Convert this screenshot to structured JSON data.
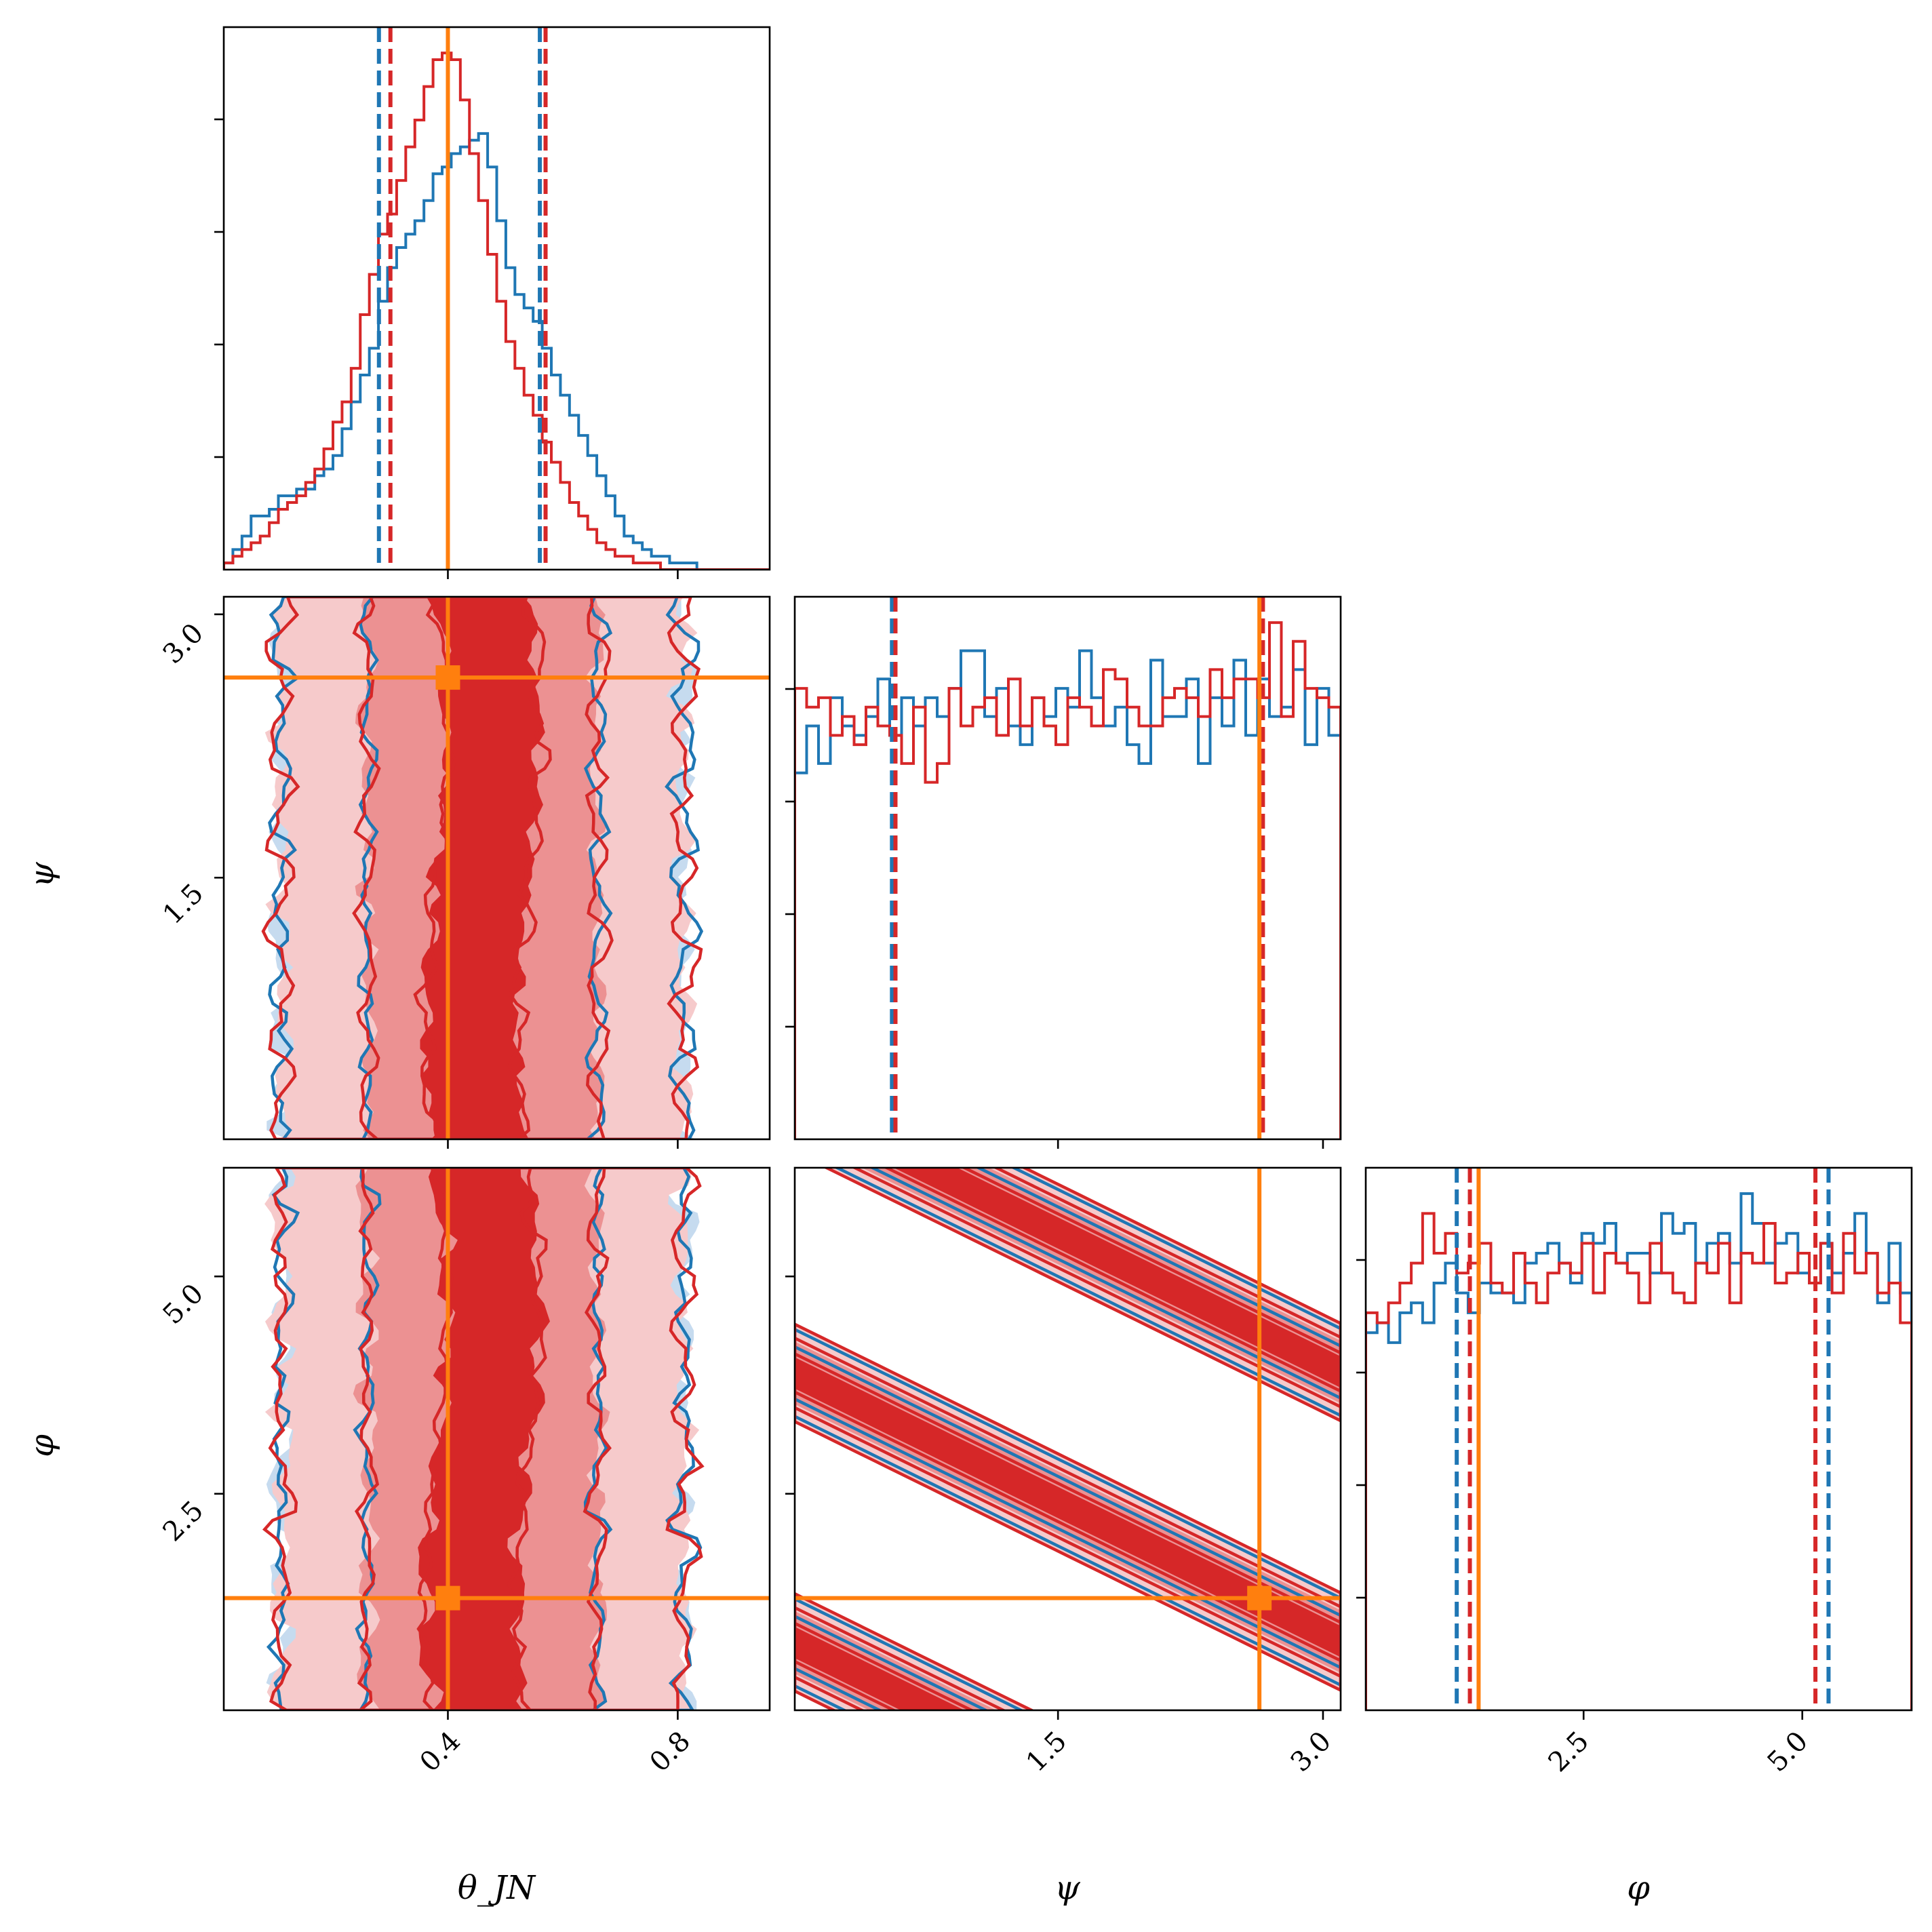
{
  "chart_data": {
    "type": "corner",
    "parameters": [
      {
        "key": "theta_jn",
        "label": "θ_JN",
        "range": [
          0.01,
          0.96
        ],
        "ticks": [
          0.4,
          0.8
        ],
        "tick_labels": [
          "0.4",
          "0.8"
        ],
        "truth": 0.4
      },
      {
        "key": "psi",
        "label": "ψ",
        "range": [
          0.01,
          3.1
        ],
        "ticks": [
          1.5,
          3.0
        ],
        "tick_labels": [
          "1.5",
          "3.0"
        ],
        "truth": 2.64
      },
      {
        "key": "phi",
        "label": "φ",
        "range": [
          0.01,
          6.25
        ],
        "ticks": [
          2.5,
          5.0
        ],
        "tick_labels": [
          "2.5",
          "5.0"
        ],
        "truth": 1.3
      }
    ],
    "series": [
      {
        "color": "#1f77b4"
      },
      {
        "color": "#d62728"
      }
    ],
    "truth_color": "#ff7f0e",
    "quantiles": {
      "theta_jn": {
        "series_1": [
          0.28,
          0.56
        ],
        "series_2": [
          0.3,
          0.57
        ]
      },
      "psi": {
        "series_1": [
          0.56,
          2.65
        ],
        "series_2": [
          0.58,
          2.66
        ]
      },
      "phi": {
        "series_1": [
          1.05,
          5.3
        ],
        "series_2": [
          1.2,
          5.15
        ]
      }
    },
    "histograms": {
      "theta_jn": {
        "bin_range": [
          0.01,
          0.96
        ],
        "series_1": [
          1,
          3,
          5,
          8,
          8,
          9,
          11,
          11,
          12,
          12,
          14,
          15,
          17,
          21,
          25,
          29,
          33,
          40,
          45,
          48,
          50,
          52,
          55,
          59,
          60,
          62,
          63,
          64,
          65,
          60,
          52,
          45,
          41,
          39,
          37,
          33,
          29,
          26,
          23,
          20,
          17,
          14,
          11,
          8,
          5,
          4,
          3,
          2,
          2,
          1,
          1,
          1,
          0,
          0,
          0,
          0,
          0,
          0,
          0,
          0
        ],
        "series_2": [
          1,
          2,
          3,
          4,
          5,
          7,
          9,
          10,
          11,
          13,
          15,
          18,
          22,
          25,
          30,
          38,
          44,
          50,
          53,
          58,
          63,
          67,
          72,
          76,
          77,
          76,
          70,
          62,
          55,
          47,
          40,
          34,
          30,
          26,
          23,
          19,
          16,
          13,
          10,
          8,
          6,
          4,
          3,
          2,
          2,
          1,
          1,
          1,
          0,
          0,
          0,
          0,
          0,
          0,
          0,
          0,
          0,
          0,
          0,
          0
        ]
      },
      "psi": {
        "bin_range": [
          0.01,
          3.1
        ],
        "series_1": [
          39,
          44,
          40,
          47,
          44,
          43,
          45,
          49,
          43,
          47,
          44,
          47,
          45,
          48,
          52,
          52,
          45,
          48,
          44,
          42,
          47,
          45,
          48,
          46,
          52,
          47,
          44,
          46,
          42,
          40,
          51,
          45,
          45,
          49,
          40,
          47,
          44,
          51,
          43,
          49,
          45,
          46,
          50,
          42,
          48,
          43
        ],
        "series_2": [
          48,
          46,
          47,
          43,
          45,
          42,
          46,
          44,
          43,
          40,
          46,
          38,
          40,
          48,
          44,
          46,
          47,
          43,
          49,
          44,
          47,
          44,
          42,
          47,
          46,
          44,
          50,
          49,
          46,
          44,
          44,
          47,
          48,
          47,
          45,
          50,
          47,
          49,
          49,
          47,
          55,
          45,
          53,
          48,
          47,
          46
        ]
      },
      "phi": {
        "bin_range": [
          0.01,
          6.25
        ],
        "series_1": [
          38,
          39,
          37,
          40,
          41,
          39,
          43,
          45,
          42,
          40,
          43,
          42,
          42,
          41,
          45,
          46,
          47,
          45,
          43,
          48,
          47,
          49,
          45,
          46,
          46,
          44,
          50,
          48,
          49,
          45,
          47,
          48,
          45,
          52,
          49,
          45,
          47,
          48,
          44,
          43,
          47,
          44,
          46,
          50,
          46,
          41,
          47,
          42
        ],
        "series_2": [
          40,
          39,
          41,
          43,
          45,
          50,
          46,
          48,
          44,
          45,
          47,
          43,
          42,
          46,
          43,
          41,
          44,
          45,
          44,
          47,
          42,
          46,
          45,
          44,
          41,
          47,
          44,
          42,
          41,
          45,
          44,
          47,
          41,
          46,
          45,
          49,
          43,
          44,
          46,
          43,
          47,
          42,
          48,
          44,
          46,
          42,
          43,
          39
        ]
      }
    },
    "density_2d": {
      "theta_jn_vs_psi": {
        "correlation": "none",
        "theta_jn_mode": 0.46
      },
      "theta_jn_vs_phi": {
        "correlation": "none",
        "theta_jn_mode": 0.46
      },
      "psi_vs_phi": {
        "correlation": "diagonal bands, phi + 2 psi = const (mod 2π)",
        "band_offsets": [
          7.0,
          3.9,
          0.8
        ],
        "band_slope": -1.0
      }
    },
    "grid": false,
    "legend": "none"
  }
}
